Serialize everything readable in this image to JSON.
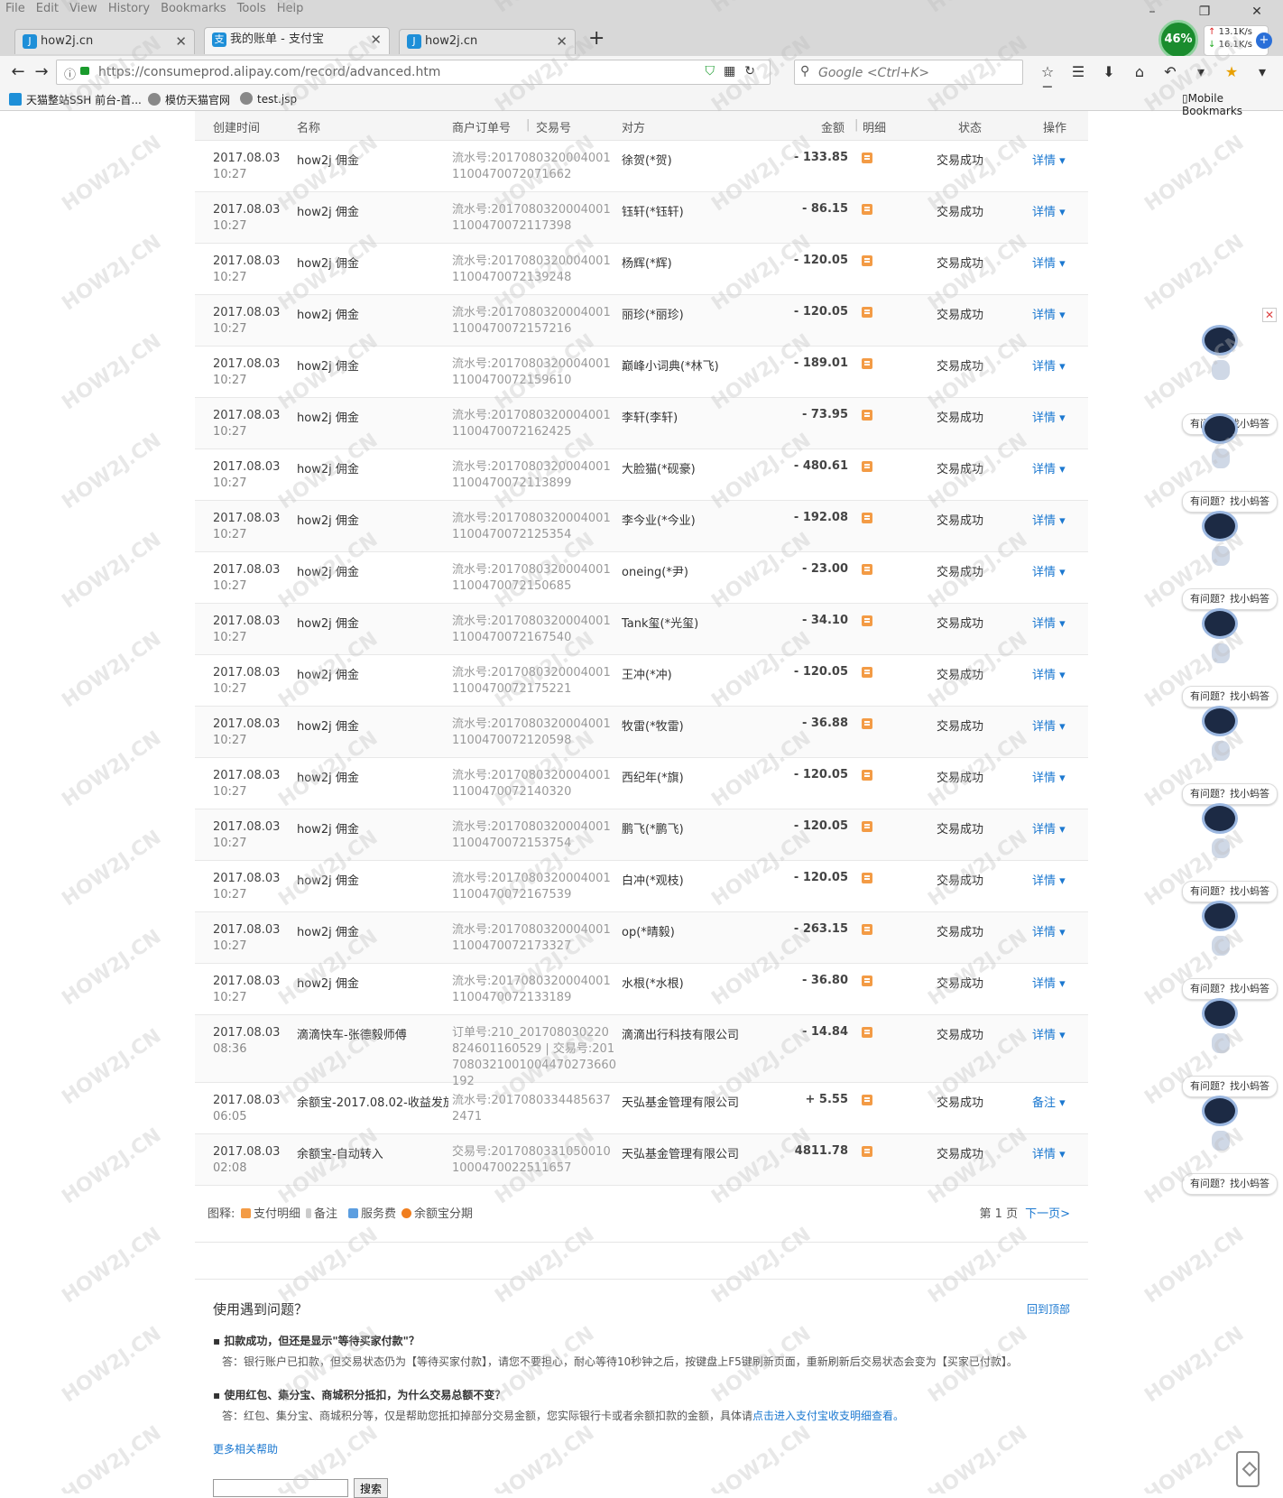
{
  "browser": {
    "menu": [
      "File",
      "Edit",
      "View",
      "History",
      "Bookmarks",
      "Tools",
      "Help"
    ],
    "tabs": [
      {
        "label": "how2j.cn",
        "favicon": "J"
      },
      {
        "label": "我的账单 - 支付宝",
        "favicon": "支"
      },
      {
        "label": "how2j.cn",
        "favicon": "J"
      }
    ],
    "net": {
      "percent": "46%",
      "up": "13.1K/s",
      "down": "16.1K/s"
    },
    "url": "https://consumeprod.alipay.com/record/advanced.htm",
    "search_placeholder": "Google <Ctrl+K>",
    "bookmarks": [
      {
        "label": "天猫整站SSH 前台-首..."
      },
      {
        "label": "模仿天猫官网"
      },
      {
        "label": "test.jsp"
      }
    ],
    "mobile_bookmarks": "Mobile Bookmarks"
  },
  "table": {
    "headers": {
      "time": "创建时间",
      "name": "名称",
      "order": "商户订单号",
      "sep": "|",
      "trade": "交易号",
      "party": "对方",
      "amount": "金额",
      "detail": "明细",
      "status": "状态",
      "op": "操作"
    },
    "rows": [
      {
        "date": "2017.08.03",
        "time": "10:27",
        "name": "how2j 佣金",
        "serial": "流水号:20170803200040011100470072071662",
        "party": "徐贺(*贺)",
        "amount": "- 133.85",
        "status": "交易成功",
        "op": "详情 ▾"
      },
      {
        "date": "2017.08.03",
        "time": "10:27",
        "name": "how2j 佣金",
        "serial": "流水号:20170803200040011100470072117398",
        "party": "钰轩(*钰轩)",
        "amount": "- 86.15",
        "status": "交易成功",
        "op": "详情 ▾"
      },
      {
        "date": "2017.08.03",
        "time": "10:27",
        "name": "how2j 佣金",
        "serial": "流水号:20170803200040011100470072139248",
        "party": "杨辉(*辉)",
        "amount": "- 120.05",
        "status": "交易成功",
        "op": "详情 ▾"
      },
      {
        "date": "2017.08.03",
        "time": "10:27",
        "name": "how2j 佣金",
        "serial": "流水号:20170803200040011100470072157216",
        "party": "丽珍(*丽珍)",
        "amount": "- 120.05",
        "status": "交易成功",
        "op": "详情 ▾"
      },
      {
        "date": "2017.08.03",
        "time": "10:27",
        "name": "how2j 佣金",
        "serial": "流水号:20170803200040011100470072159610",
        "party": "巅峰小词典(*林飞)",
        "amount": "- 189.01",
        "status": "交易成功",
        "op": "详情 ▾"
      },
      {
        "date": "2017.08.03",
        "time": "10:27",
        "name": "how2j 佣金",
        "serial": "流水号:20170803200040011100470072162425",
        "party": "李轩(李轩)",
        "amount": "- 73.95",
        "status": "交易成功",
        "op": "详情 ▾"
      },
      {
        "date": "2017.08.03",
        "time": "10:27",
        "name": "how2j 佣金",
        "serial": "流水号:20170803200040011100470072113899",
        "party": "大脸猫(*砚豪)",
        "amount": "- 480.61",
        "status": "交易成功",
        "op": "详情 ▾"
      },
      {
        "date": "2017.08.03",
        "time": "10:27",
        "name": "how2j 佣金",
        "serial": "流水号:20170803200040011100470072125354",
        "party": "李今业(*今业)",
        "amount": "- 192.08",
        "status": "交易成功",
        "op": "详情 ▾"
      },
      {
        "date": "2017.08.03",
        "time": "10:27",
        "name": "how2j 佣金",
        "serial": "流水号:20170803200040011100470072150685",
        "party": "oneing(*尹)",
        "amount": "- 23.00",
        "status": "交易成功",
        "op": "详情 ▾"
      },
      {
        "date": "2017.08.03",
        "time": "10:27",
        "name": "how2j 佣金",
        "serial": "流水号:20170803200040011100470072167540",
        "party": "Tank玺(*光玺)",
        "amount": "- 34.10",
        "status": "交易成功",
        "op": "详情 ▾"
      },
      {
        "date": "2017.08.03",
        "time": "10:27",
        "name": "how2j 佣金",
        "serial": "流水号:20170803200040011100470072175221",
        "party": "王冲(*冲)",
        "amount": "- 120.05",
        "status": "交易成功",
        "op": "详情 ▾"
      },
      {
        "date": "2017.08.03",
        "time": "10:27",
        "name": "how2j 佣金",
        "serial": "流水号:20170803200040011100470072120598",
        "party": "牧雷(*牧雷)",
        "amount": "- 36.88",
        "status": "交易成功",
        "op": "详情 ▾"
      },
      {
        "date": "2017.08.03",
        "time": "10:27",
        "name": "how2j 佣金",
        "serial": "流水号:20170803200040011100470072140320",
        "party": "西纪年(*旗)",
        "amount": "- 120.05",
        "status": "交易成功",
        "op": "详情 ▾"
      },
      {
        "date": "2017.08.03",
        "time": "10:27",
        "name": "how2j 佣金",
        "serial": "流水号:20170803200040011100470072153754",
        "party": "鹏飞(*鹏飞)",
        "amount": "- 120.05",
        "status": "交易成功",
        "op": "详情 ▾"
      },
      {
        "date": "2017.08.03",
        "time": "10:27",
        "name": "how2j 佣金",
        "serial": "流水号:20170803200040011100470072167539",
        "party": "白冲(*观枝)",
        "amount": "- 120.05",
        "status": "交易成功",
        "op": "详情 ▾"
      },
      {
        "date": "2017.08.03",
        "time": "10:27",
        "name": "how2j 佣金",
        "serial": "流水号:20170803200040011100470072173327",
        "party": "op(*晴毅)",
        "amount": "- 263.15",
        "status": "交易成功",
        "op": "详情 ▾"
      },
      {
        "date": "2017.08.03",
        "time": "10:27",
        "name": "how2j 佣金",
        "serial": "流水号:20170803200040011100470072133189",
        "party": "水根(*水根)",
        "amount": "- 36.80",
        "status": "交易成功",
        "op": "详情 ▾"
      },
      {
        "date": "2017.08.03",
        "time": "08:36",
        "name": "滴滴快车-张德毅师傅",
        "serial": "订单号:210_201708030220824601160529 | 交易号:2017080321001004470273660192",
        "party": "滴滴出行科技有限公司",
        "amount": "- 14.84",
        "status": "交易成功",
        "op": "详情 ▾",
        "tall": true
      },
      {
        "date": "2017.08.03",
        "time": "06:05",
        "name": "余额宝-2017.08.02-收益发放",
        "serial": "流水号:20170803344856372471",
        "party": "天弘基金管理有限公司",
        "amount": "+ 5.55",
        "status": "交易成功",
        "op": "备注 ▾"
      },
      {
        "date": "2017.08.03",
        "time": "02:08",
        "name": "余额宝-自动转入",
        "serial": "交易号:20170803310500101000470022511657",
        "party": "天弘基金管理有限公司",
        "amount": "4811.78",
        "status": "交易成功",
        "op": "详情 ▾"
      }
    ]
  },
  "legend": {
    "label": "图释:",
    "items": [
      "支付明细",
      "备注",
      "服务费",
      "余额宝分期"
    ],
    "page": "第 1 页",
    "next": "下一页>"
  },
  "help": {
    "title": "使用遇到问题？",
    "back_top": "回到顶部",
    "q1": "扣款成功，但还是显示\"等待买家付款\"？",
    "a1": "答：银行账户已扣款，但交易状态仍为【等待买家付款】，请您不要担心，耐心等待10秒钟之后，按键盘上F5键刷新页面，重新刷新后交易状态会变为【买家已付款】。",
    "q2": "使用红包、集分宝、商城积分抵扣，为什么交易总额不变？",
    "a2": "答：红包、集分宝、商城积分等，仅是帮助您抵扣掉部分交易金额，您实际银行卡或者余额扣款的金额，具体请",
    "a2_link": "点击进入支付宝收支明细查看。",
    "more": "更多相关帮助",
    "search_button": "搜索"
  },
  "assistant": {
    "bubble": "有问题？找小蚂答",
    "close": "✕"
  },
  "watermark": "HOW2J.CN",
  "colors": {
    "link": "#1b78d0",
    "detail_icon": "#f39b45",
    "amount_text": "#444444",
    "status": "#333333"
  }
}
